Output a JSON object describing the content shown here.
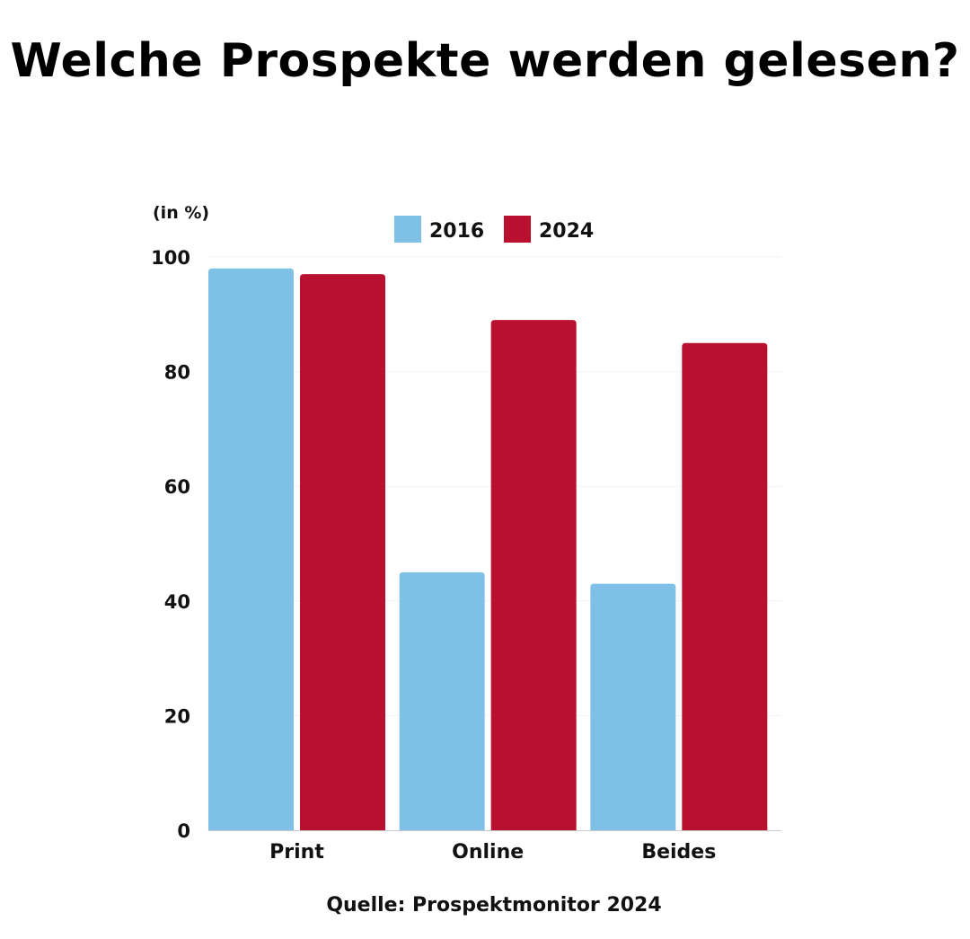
{
  "title": "Welche Prospekte werden gelesen?",
  "source": "Quelle: Prospektmonitor 2024",
  "colors": {
    "series_2016": "#7fc1e6",
    "series_2024": "#b8102e",
    "grid": "#f2f2f2",
    "axis": "#cccccc"
  },
  "chart_data": {
    "type": "bar",
    "title": "Welche Prospekte werden gelesen?",
    "unit_label": "(in %)",
    "categories": [
      "Print",
      "Online",
      "Beides"
    ],
    "series": [
      {
        "name": "2016",
        "values": [
          98,
          45,
          43
        ]
      },
      {
        "name": "2024",
        "values": [
          97,
          89,
          85
        ]
      }
    ],
    "ylim": [
      0,
      100
    ],
    "yticks": [
      "0",
      "20",
      "40",
      "60",
      "80",
      "100"
    ],
    "xlabel": "",
    "ylabel": "",
    "grid": true,
    "legend": "top-center"
  }
}
